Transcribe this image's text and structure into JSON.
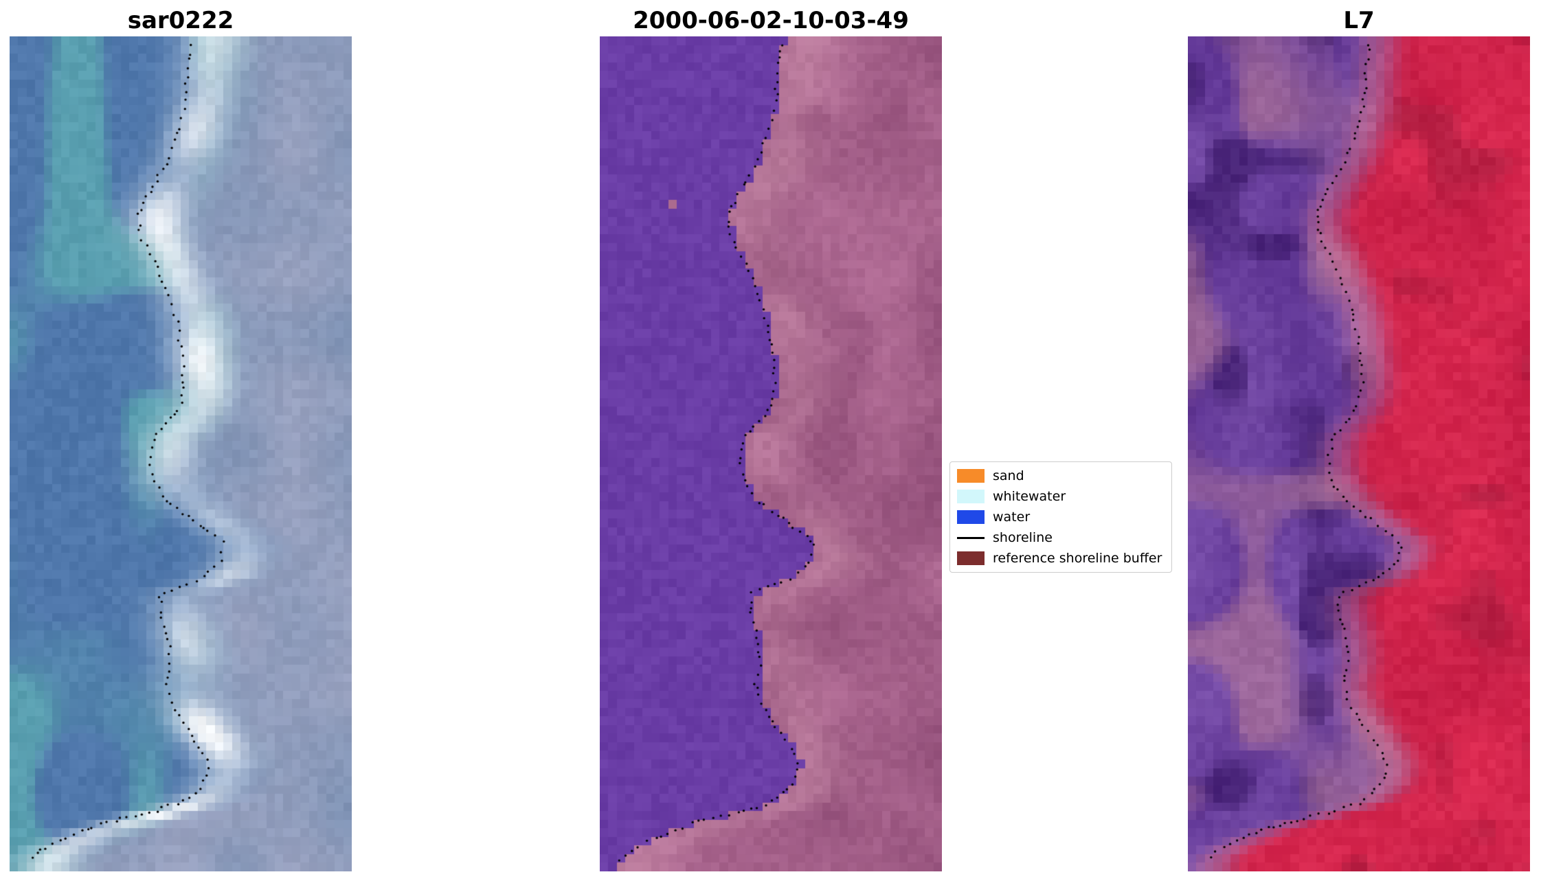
{
  "figure": {
    "background": "#ffffff",
    "panels": [
      {
        "title": "sar0222"
      },
      {
        "title": "2000-06-02-10-03-49"
      },
      {
        "title": "L7"
      }
    ],
    "legend": {
      "entries": [
        {
          "label": "sand",
          "type": "patch",
          "color": "#f78b29"
        },
        {
          "label": "whitewater",
          "type": "patch",
          "color": "#d2f7fb"
        },
        {
          "label": "water",
          "type": "patch",
          "color": "#1f49e8"
        },
        {
          "label": "shoreline",
          "type": "line",
          "color": "#000000"
        },
        {
          "label": "reference shoreline buffer",
          "type": "patch",
          "color": "#7c2d2d"
        }
      ]
    }
  },
  "chart_data": {
    "type": "heatmap",
    "description": "Three coastal satellite image panels (SAR scene, classified optical scene, Landsat-7 scene) shown side by side with the same detected shoreline overlaid as a dotted black line; legend between panels 2 and 3.",
    "axes": "off",
    "grid": false,
    "legend_position": "center-right",
    "legend": [
      "sand",
      "whitewater",
      "water",
      "shoreline",
      "reference shoreline buffer"
    ],
    "panels": [
      {
        "title": "sar0222",
        "kind": "sar",
        "seed": 7,
        "palette": {
          "water_deep": "#4f77ab",
          "water_teal": "#5aa3b0",
          "right_gray": "#7e92b4",
          "right_light": "#99a2c0",
          "band_white": "#f4f7fa"
        }
      },
      {
        "title": "2000-06-02-10-03-49",
        "kind": "classification",
        "seed": 11,
        "palette": {
          "water_mask": "#6a3da6",
          "land_dark": "#93507a",
          "land_light": "#b26d96",
          "land_pink": "#c68aa6",
          "blob": "#aa6a8e"
        }
      },
      {
        "title": "L7",
        "kind": "l7",
        "seed": 29,
        "palette": {
          "purple": "#5a3090",
          "purple_light": "#7b51ac",
          "purple_dark": "#431f72",
          "pink_patch": "#a8709a",
          "band_pink": "#c67fa2",
          "red": "#c71e46",
          "red_light": "#dd2b52",
          "red_dark": "#a21a3c"
        }
      }
    ],
    "shoreline": {
      "style": "dotted",
      "color": "#000000",
      "dot_radius": 1.7,
      "spacing": 11,
      "points": [
        [
          0.53,
          0.01
        ],
        [
          0.52,
          0.045
        ],
        [
          0.515,
          0.075
        ],
        [
          0.5,
          0.105
        ],
        [
          0.46,
          0.15
        ],
        [
          0.41,
          0.185
        ],
        [
          0.375,
          0.215
        ],
        [
          0.385,
          0.24
        ],
        [
          0.43,
          0.275
        ],
        [
          0.465,
          0.31
        ],
        [
          0.49,
          0.345
        ],
        [
          0.505,
          0.385
        ],
        [
          0.51,
          0.42
        ],
        [
          0.495,
          0.445
        ],
        [
          0.425,
          0.48
        ],
        [
          0.41,
          0.505
        ],
        [
          0.42,
          0.53
        ],
        [
          0.455,
          0.555
        ],
        [
          0.555,
          0.585
        ],
        [
          0.625,
          0.607
        ],
        [
          0.615,
          0.63
        ],
        [
          0.555,
          0.65
        ],
        [
          0.44,
          0.668
        ],
        [
          0.445,
          0.695
        ],
        [
          0.465,
          0.725
        ],
        [
          0.47,
          0.75
        ],
        [
          0.455,
          0.775
        ],
        [
          0.475,
          0.8
        ],
        [
          0.51,
          0.825
        ],
        [
          0.555,
          0.85
        ],
        [
          0.585,
          0.875
        ],
        [
          0.56,
          0.9
        ],
        [
          0.5,
          0.918
        ],
        [
          0.4,
          0.93
        ],
        [
          0.28,
          0.942
        ],
        [
          0.17,
          0.958
        ],
        [
          0.09,
          0.975
        ],
        [
          0.05,
          0.988
        ]
      ]
    }
  }
}
